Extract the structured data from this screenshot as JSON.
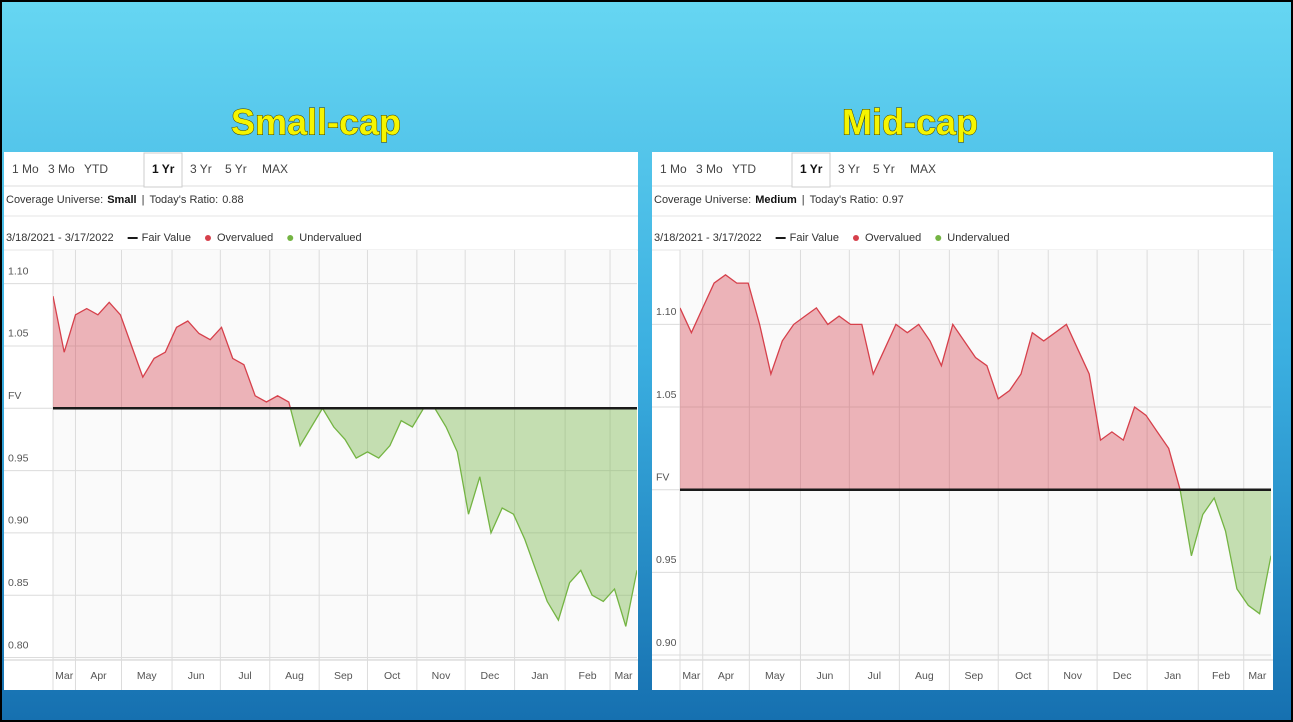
{
  "chart_data": [
    {
      "type": "area",
      "title": "Small-cap",
      "tabs": [
        "1 Mo",
        "3 Mo",
        "YTD",
        "1 Yr",
        "3 Yr",
        "5 Yr",
        "MAX"
      ],
      "active_tab": 3,
      "coverage_label": "Coverage Universe:",
      "coverage": "Small",
      "separator": "|",
      "ratio_label": "Today's Ratio:",
      "ratio": 0.88,
      "date_range": "3/18/2021 - 3/17/2022",
      "legend": [
        {
          "name": "Fair Value",
          "color": "#1a1a1a"
        },
        {
          "name": "Overvalued",
          "color": "#d6404b"
        },
        {
          "name": "Undervalued",
          "color": "#74b443"
        }
      ],
      "fair_value": 1,
      "x": [
        0,
        1,
        2,
        3,
        4,
        5,
        6,
        7,
        8,
        9,
        10,
        11,
        12,
        13,
        14,
        15,
        16,
        17,
        18,
        19,
        20,
        21,
        22,
        23,
        24,
        25,
        26,
        27,
        28,
        29,
        30,
        31,
        32,
        33,
        34,
        35,
        36,
        37,
        38,
        39,
        40,
        41,
        42,
        43,
        44,
        45,
        46,
        47,
        48,
        49,
        50,
        51,
        52
      ],
      "values": [
        1.09,
        1.045,
        1.075,
        1.08,
        1.075,
        1.085,
        1.075,
        1.05,
        1.025,
        1.04,
        1.045,
        1.065,
        1.07,
        1.06,
        1.055,
        1.065,
        1.04,
        1.035,
        1.01,
        1.005,
        1.01,
        1.005,
        0.97,
        0.985,
        1.0,
        0.985,
        0.975,
        0.96,
        0.965,
        0.96,
        0.97,
        0.99,
        0.985,
        1.0,
        1.0,
        0.985,
        0.965,
        0.915,
        0.945,
        0.9,
        0.92,
        0.915,
        0.895,
        0.87,
        0.845,
        0.83,
        0.86,
        0.87,
        0.85,
        0.845,
        0.855,
        0.825,
        0.87
      ],
      "xlim": [
        0,
        52
      ],
      "xticks": [
        {
          "value": 0,
          "label": "Mar"
        },
        {
          "value": 2,
          "label": "Apr"
        },
        {
          "value": 6.1,
          "label": "May"
        },
        {
          "value": 10.6,
          "label": "Jun"
        },
        {
          "value": 14.9,
          "label": "Jul"
        },
        {
          "value": 19.3,
          "label": "Aug"
        },
        {
          "value": 23.7,
          "label": "Sep"
        },
        {
          "value": 28,
          "label": "Oct"
        },
        {
          "value": 32.4,
          "label": "Nov"
        },
        {
          "value": 36.7,
          "label": "Dec"
        },
        {
          "value": 41.1,
          "label": "Jan"
        },
        {
          "value": 45.6,
          "label": "Feb"
        },
        {
          "value": 49.6,
          "label": "Mar"
        }
      ],
      "ylim": [
        0.798,
        1.127
      ],
      "yticks": [
        {
          "value": 0.8,
          "label": "0.80"
        },
        {
          "value": 0.85,
          "label": "0.85"
        },
        {
          "value": 0.9,
          "label": "0.90"
        },
        {
          "value": 0.95,
          "label": "0.95"
        },
        {
          "value": 1,
          "label": "FV"
        },
        {
          "value": 1.05,
          "label": "1.05"
        },
        {
          "value": 1.1,
          "label": "1.10"
        }
      ],
      "grid": true
    },
    {
      "type": "area",
      "title": "Mid-cap",
      "tabs": [
        "1 Mo",
        "3 Mo",
        "YTD",
        "1 Yr",
        "3 Yr",
        "5 Yr",
        "MAX"
      ],
      "active_tab": 3,
      "coverage_label": "Coverage Universe:",
      "coverage": "Medium",
      "separator": "|",
      "ratio_label": "Today's Ratio:",
      "ratio": 0.97,
      "date_range": "3/18/2021 - 3/17/2022",
      "legend": [
        {
          "name": "Fair Value",
          "color": "#1a1a1a"
        },
        {
          "name": "Overvalued",
          "color": "#d6404b"
        },
        {
          "name": "Undervalued",
          "color": "#74b443"
        }
      ],
      "fair_value": 1,
      "x": [
        0,
        1,
        2,
        3,
        4,
        5,
        6,
        7,
        8,
        9,
        10,
        11,
        12,
        13,
        14,
        15,
        16,
        17,
        18,
        19,
        20,
        21,
        22,
        23,
        24,
        25,
        26,
        27,
        28,
        29,
        30,
        31,
        32,
        33,
        34,
        35,
        36,
        37,
        38,
        39,
        40,
        41,
        42,
        43,
        44,
        45,
        46,
        47,
        48,
        49,
        50,
        51,
        52
      ],
      "values": [
        1.11,
        1.095,
        1.11,
        1.125,
        1.13,
        1.125,
        1.125,
        1.1,
        1.07,
        1.09,
        1.1,
        1.105,
        1.11,
        1.1,
        1.105,
        1.1,
        1.1,
        1.07,
        1.085,
        1.1,
        1.095,
        1.1,
        1.09,
        1.075,
        1.1,
        1.09,
        1.08,
        1.075,
        1.055,
        1.06,
        1.07,
        1.095,
        1.09,
        1.095,
        1.1,
        1.085,
        1.07,
        1.03,
        1.035,
        1.03,
        1.05,
        1.045,
        1.035,
        1.025,
        1.0,
        0.96,
        0.985,
        0.995,
        0.975,
        0.94,
        0.93,
        0.925,
        0.96
      ],
      "xlim": [
        0,
        52
      ],
      "xticks": [
        {
          "value": 0,
          "label": "Mar"
        },
        {
          "value": 2,
          "label": "Apr"
        },
        {
          "value": 6.1,
          "label": "May"
        },
        {
          "value": 10.6,
          "label": "Jun"
        },
        {
          "value": 14.9,
          "label": "Jul"
        },
        {
          "value": 19.3,
          "label": "Aug"
        },
        {
          "value": 23.7,
          "label": "Sep"
        },
        {
          "value": 28,
          "label": "Oct"
        },
        {
          "value": 32.4,
          "label": "Nov"
        },
        {
          "value": 36.7,
          "label": "Dec"
        },
        {
          "value": 41.1,
          "label": "Jan"
        },
        {
          "value": 45.6,
          "label": "Feb"
        },
        {
          "value": 49.6,
          "label": "Mar"
        }
      ],
      "ylim": [
        0.897,
        1.145
      ],
      "yticks": [
        {
          "value": 0.9,
          "label": "0.90"
        },
        {
          "value": 0.95,
          "label": "0.95"
        },
        {
          "value": 1,
          "label": "FV"
        },
        {
          "value": 1.05,
          "label": "1.05"
        },
        {
          "value": 1.1,
          "label": "1.10"
        }
      ],
      "grid": true
    }
  ]
}
